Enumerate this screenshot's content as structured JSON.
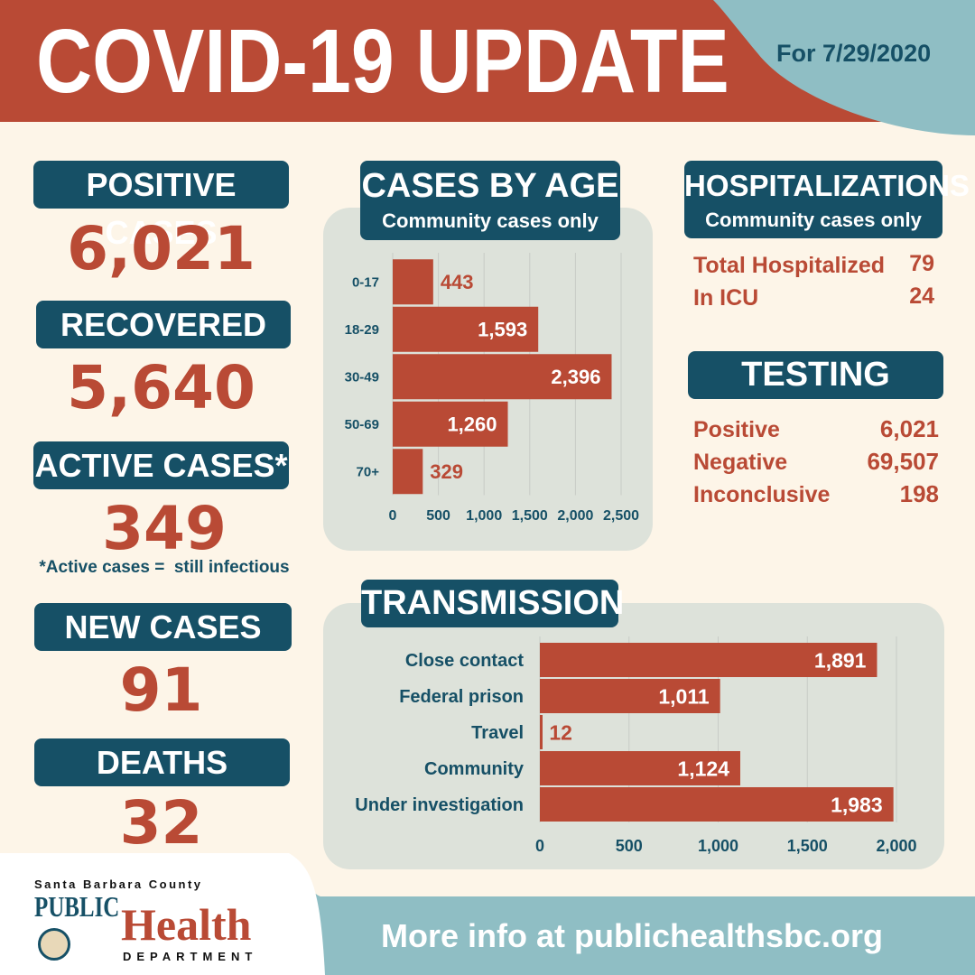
{
  "header": {
    "title": "COVID-19 UPDATE",
    "date": "For 7/29/2020"
  },
  "stats": {
    "positive": {
      "label": "POSITIVE CASES",
      "value": "6,021"
    },
    "recovered": {
      "label": "RECOVERED",
      "value": "5,640"
    },
    "active": {
      "label": "ACTIVE CASES*",
      "value": "349",
      "note": "*Active cases =  still infectious"
    },
    "new_cases": {
      "label": "NEW CASES",
      "value": "91"
    },
    "deaths": {
      "label": "DEATHS",
      "value": "32"
    }
  },
  "age_chart": {
    "title": "CASES BY AGE",
    "subtitle": "Community cases only"
  },
  "hospitalizations": {
    "title": "HOSPITALIZATIONS",
    "subtitle": "Community cases only",
    "rows": [
      {
        "label": "Total Hospitalized",
        "value": "79"
      },
      {
        "label": "In ICU",
        "value": "24"
      }
    ]
  },
  "testing": {
    "title": "TESTING",
    "rows": [
      {
        "label": "Positive",
        "value": "6,021"
      },
      {
        "label": "Negative",
        "value": "69,507"
      },
      {
        "label": "Inconclusive",
        "value": "198"
      }
    ]
  },
  "transmission": {
    "title": "TRANSMISSION"
  },
  "footer": {
    "org_line1": "Santa Barbara County",
    "org_public": "PUBLIC",
    "org_health": "Health",
    "org_dept": "DEPARTMENT",
    "info": "More info at publichealthsbc.org"
  },
  "colors": {
    "red": "#b94a35",
    "teal": "#165066",
    "light_teal": "#8fbec4",
    "cream": "#fdf5e8",
    "panel": "#dde2da"
  },
  "chart_data": [
    {
      "type": "bar",
      "orientation": "horizontal",
      "categories": [
        "0-17",
        "18-29",
        "30-49",
        "50-69",
        "70+"
      ],
      "values": [
        443,
        1593,
        2396,
        1260,
        329
      ],
      "value_labels": [
        "443",
        "1,593",
        "2,396",
        "1,260",
        "329"
      ],
      "xlim": [
        0,
        2500
      ],
      "xticks": [
        "0",
        "500",
        "1,000",
        "1,500",
        "2,000",
        "2,500"
      ],
      "grid": true
    },
    {
      "type": "bar",
      "orientation": "horizontal",
      "categories": [
        "Close contact",
        "Federal prison",
        "Travel",
        "Community",
        "Under investigation"
      ],
      "values": [
        1891,
        1011,
        12,
        1124,
        1983
      ],
      "value_labels": [
        "1,891",
        "1,011",
        "12",
        "1,124",
        "1,983"
      ],
      "xlim": [
        0,
        2000
      ],
      "xticks": [
        "0",
        "500",
        "1,000",
        "1,500",
        "2,000"
      ],
      "grid": true
    }
  ]
}
